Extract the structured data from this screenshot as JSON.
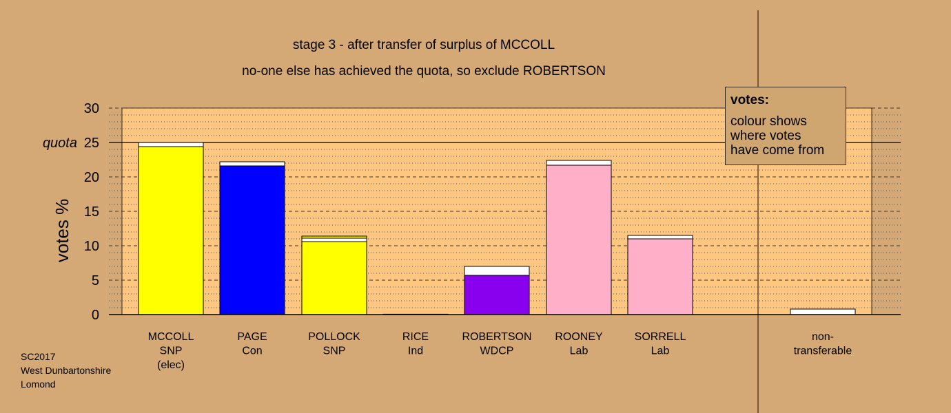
{
  "titles": {
    "line1": "stage 3 - after transfer of surplus of MCCOLL",
    "line2": "no-one else has achieved the quota, so exclude ROBERTSON"
  },
  "legend": {
    "heading": "votes:",
    "lines": [
      "colour shows",
      "where votes",
      "have come from"
    ]
  },
  "footer": {
    "lines": [
      "SC2017",
      "West Dunbartonshire",
      "Lomond"
    ]
  },
  "chart_data": {
    "type": "bar",
    "ylabel": "votes %",
    "ylim": [
      0,
      30
    ],
    "yticks": [
      0,
      5,
      10,
      15,
      20,
      25,
      30
    ],
    "quota_label": "quota",
    "quota": 25,
    "grid": "dashed major + dotted minor",
    "candidates": [
      {
        "label": [
          "MCCOLL",
          "SNP",
          "(elec)"
        ],
        "segments": [
          {
            "value": 24.4,
            "color": "#FFFF00"
          },
          {
            "value": 0.6,
            "color": "#FFFFFF"
          }
        ]
      },
      {
        "label": [
          "PAGE",
          "Con"
        ],
        "segments": [
          {
            "value": 21.6,
            "color": "#0000FF"
          },
          {
            "value": 0.6,
            "color": "#FFFFFF"
          }
        ]
      },
      {
        "label": [
          "POLLOCK",
          "SNP"
        ],
        "segments": [
          {
            "value": 10.6,
            "color": "#FFFF00"
          },
          {
            "value": 0.5,
            "color": "#FFFFFF"
          },
          {
            "value": 0.3,
            "color": "#FFFF00"
          }
        ]
      },
      {
        "label": [
          "RICE",
          "Ind"
        ],
        "segments": [
          {
            "value": 0.05,
            "color": "#FFFFFF"
          }
        ]
      },
      {
        "label": [
          "ROBERTSON",
          "WDCP"
        ],
        "segments": [
          {
            "value": 5.7,
            "color": "#8800EE"
          },
          {
            "value": 1.3,
            "color": "#FFFFFF"
          }
        ]
      },
      {
        "label": [
          "ROONEY",
          "Lab"
        ],
        "segments": [
          {
            "value": 21.7,
            "color": "#FFB0C8"
          },
          {
            "value": 0.7,
            "color": "#FFFFFF"
          }
        ]
      },
      {
        "label": [
          "SORRELL",
          "Lab"
        ],
        "segments": [
          {
            "value": 11.0,
            "color": "#FFB0C8"
          },
          {
            "value": 0.5,
            "color": "#FFFFFF"
          }
        ]
      }
    ],
    "nontransferable": {
      "label": [
        "non-",
        "transferable"
      ],
      "value": 0.8,
      "color": "#FFFFFF"
    },
    "colors": {
      "plot_bg": "#FFC680",
      "page_bg": "#D4A975"
    }
  }
}
